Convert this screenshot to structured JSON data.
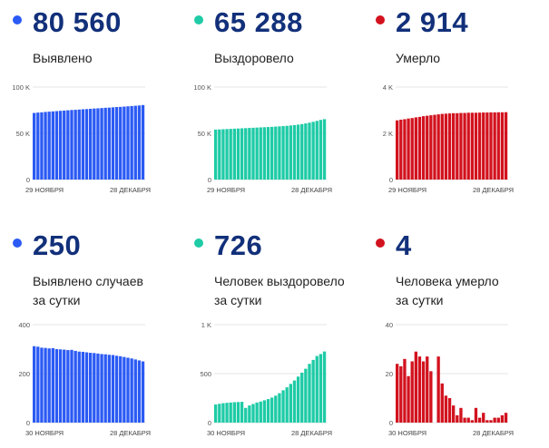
{
  "chart_data": [
    {
      "type": "bar",
      "title": "80 560",
      "subtitle": "Выявлено",
      "color": "#2b5af4",
      "ylim": [
        0,
        100000
      ],
      "yticks": [
        {
          "v": 0,
          "label": "0"
        },
        {
          "v": 50000,
          "label": "50 K"
        },
        {
          "v": 100000,
          "label": "100 K"
        }
      ],
      "xlabels": [
        "29 НОЯБРЯ",
        "28 ДЕКАБРЯ"
      ],
      "values": [
        72000,
        72400,
        72700,
        73100,
        73400,
        73700,
        74000,
        74300,
        74600,
        74900,
        75200,
        75400,
        75700,
        76000,
        76200,
        76500,
        76800,
        77000,
        77300,
        77600,
        77800,
        78100,
        78400,
        78600,
        78900,
        79200,
        79500,
        79800,
        80100,
        80560
      ]
    },
    {
      "type": "bar",
      "title": "65 288",
      "subtitle": "Выздоровело",
      "color": "#1ecba6",
      "ylim": [
        0,
        100000
      ],
      "yticks": [
        {
          "v": 0,
          "label": "0"
        },
        {
          "v": 50000,
          "label": "50 K"
        },
        {
          "v": 100000,
          "label": "100 K"
        }
      ],
      "xlabels": [
        "29 НОЯБРЯ",
        "28 ДЕКАБРЯ"
      ],
      "values": [
        54000,
        54200,
        54400,
        54600,
        54800,
        55000,
        55200,
        55400,
        55600,
        55800,
        56000,
        56200,
        56400,
        56600,
        56800,
        57000,
        57300,
        57500,
        57800,
        58100,
        58500,
        58900,
        59400,
        60000,
        60700,
        61500,
        62400,
        63400,
        64500,
        65288
      ]
    },
    {
      "type": "bar",
      "title": "2 914",
      "subtitle": "Умерло",
      "color": "#d2121e",
      "ylim": [
        0,
        4000
      ],
      "yticks": [
        {
          "v": 0,
          "label": "0"
        },
        {
          "v": 2000,
          "label": "2 K"
        },
        {
          "v": 4000,
          "label": "4 K"
        }
      ],
      "xlabels": [
        "29 НОЯБРЯ",
        "28 ДЕКАБРЯ"
      ],
      "values": [
        2560,
        2590,
        2610,
        2640,
        2660,
        2690,
        2710,
        2740,
        2760,
        2780,
        2800,
        2820,
        2840,
        2850,
        2860,
        2870,
        2870,
        2880,
        2880,
        2890,
        2890,
        2890,
        2895,
        2900,
        2900,
        2905,
        2905,
        2910,
        2910,
        2914
      ]
    },
    {
      "type": "bar",
      "title": "250",
      "subtitle": "Выявлено случаев\nза сутки",
      "color": "#2b5af4",
      "ylim": [
        0,
        400
      ],
      "yticks": [
        {
          "v": 0,
          "label": "0"
        },
        {
          "v": 200,
          "label": "200"
        },
        {
          "v": 400,
          "label": "400"
        }
      ],
      "xlabels": [
        "30 НОЯБРЯ",
        "28 ДЕКАБРЯ"
      ],
      "values": [
        312,
        310,
        306,
        305,
        303,
        304,
        300,
        299,
        298,
        296,
        297,
        293,
        290,
        289,
        287,
        285,
        284,
        282,
        280,
        279,
        277,
        276,
        273,
        271,
        268,
        265,
        262,
        258,
        254,
        250
      ]
    },
    {
      "type": "bar",
      "title": "726",
      "subtitle": "Человек выздоровело\nза сутки",
      "color": "#1ecba6",
      "ylim": [
        0,
        1000
      ],
      "yticks": [
        {
          "v": 0,
          "label": "0"
        },
        {
          "v": 500,
          "label": "500"
        },
        {
          "v": 1000,
          "label": "1 K"
        }
      ],
      "xlabels": [
        "30 НОЯБРЯ",
        "28 ДЕКАБРЯ"
      ],
      "values": [
        185,
        192,
        198,
        202,
        205,
        208,
        210,
        212,
        150,
        175,
        190,
        205,
        215,
        228,
        240,
        255,
        275,
        300,
        330,
        360,
        395,
        430,
        470,
        510,
        550,
        600,
        640,
        680,
        700,
        726
      ]
    },
    {
      "type": "bar",
      "title": "4",
      "subtitle": "Человека умерло\nза сутки",
      "color": "#d2121e",
      "ylim": [
        0,
        40
      ],
      "yticks": [
        {
          "v": 0,
          "label": "0"
        },
        {
          "v": 20,
          "label": "20"
        },
        {
          "v": 40,
          "label": "40"
        }
      ],
      "xlabels": [
        "30 НОЯБРЯ",
        "28 ДЕКАБРЯ"
      ],
      "values": [
        24,
        23,
        26,
        19,
        25,
        29,
        27,
        25,
        27,
        21,
        0,
        27,
        16,
        11,
        10,
        7,
        3,
        6,
        2,
        2,
        1,
        6,
        2,
        4,
        1,
        1,
        2,
        2,
        3,
        4
      ]
    }
  ]
}
